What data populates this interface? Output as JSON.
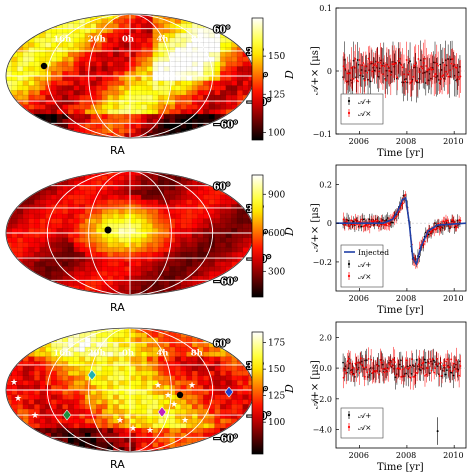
{
  "figure": {
    "rows": [
      {
        "sky": {
          "ra_label": "RA",
          "ra_ticks": [
            "8h",
            "4h",
            "0h",
            "20h",
            "16h"
          ],
          "dec_ticks": [
            "60°",
            "30°",
            "0°",
            "−30°",
            "−60°"
          ],
          "colorbar": {
            "label": "D",
            "ticks": [
              100,
              125,
              150
            ],
            "range": [
              95,
              175
            ]
          }
        },
        "timeseries": {
          "ylabel": "𝒜+× [μs]",
          "xlabel": "Time [yr]",
          "yticks": [
            "0.1",
            "0",
            "−0.1"
          ],
          "legend": [
            "𝒜+",
            "𝒜×"
          ]
        }
      },
      {
        "sky": {
          "ra_label": "RA",
          "ra_ticks": [],
          "dec_ticks": [
            "60°",
            "30°",
            "0°",
            "−30°",
            "−60°"
          ],
          "colorbar": {
            "label": "D",
            "ticks": [
              300,
              600,
              900
            ],
            "range": [
              100,
              1050
            ]
          }
        },
        "timeseries": {
          "ylabel": "𝒜+× [μs]",
          "xlabel": "Time [yr]",
          "yticks": [
            "0.2",
            "0",
            "−0.2"
          ],
          "legend": [
            "Injected",
            "𝒜+",
            "𝒜×"
          ]
        }
      },
      {
        "sky": {
          "ra_label": "RA",
          "ra_ticks": [
            "8h",
            "4h",
            "0h",
            "20h",
            "16h"
          ],
          "dec_ticks": [
            "60°",
            "30°",
            "0°",
            "−30°",
            "−60°"
          ],
          "colorbar": {
            "label": "D",
            "ticks": [
              100,
              125,
              150,
              175
            ],
            "range": [
              70,
              185
            ]
          }
        },
        "timeseries": {
          "ylabel": "𝒜+× [μs]",
          "xlabel": "Time [yr]",
          "yticks": [
            "2.0",
            "0.0",
            "−2.0",
            "−4.0"
          ],
          "legend": [
            "𝒜+",
            "𝒜×"
          ]
        }
      }
    ]
  },
  "chart_data": [
    {
      "type": "heatmap",
      "xlabel": "RA",
      "projection": "mollweide",
      "colorbar_label": "D",
      "colorbar_ticks": [
        100,
        125,
        150
      ],
      "marker": {
        "symbol": "circle",
        "color": "#000000",
        "ra_h": 5.5,
        "dec_deg": 42
      }
    },
    {
      "type": "scatter",
      "xlabel": "Time [yr]",
      "ylabel": "𝒜+× [μs]",
      "xlim": [
        2005,
        2010.5
      ],
      "ylim": [
        -0.1,
        0.1
      ],
      "xticks": [
        2006,
        2008,
        2010
      ],
      "yticks": [
        -0.1,
        0,
        0.1
      ],
      "series": [
        {
          "name": "𝒜+",
          "color": "#000000",
          "points": 90,
          "mean": 0.0,
          "err": 0.028
        },
        {
          "name": "𝒜×",
          "color": "#ff0000",
          "points": 90,
          "mean": 0.0,
          "err": 0.028
        }
      ]
    },
    {
      "type": "heatmap",
      "xlabel": "RA",
      "projection": "mollweide",
      "colorbar_label": "D",
      "colorbar_ticks": [
        300,
        600,
        900
      ],
      "marker": {
        "symbol": "circle",
        "color": "#000000",
        "ra_h": 0.3,
        "dec_deg": 5
      }
    },
    {
      "type": "line",
      "xlabel": "Time [yr]",
      "ylabel": "𝒜+× [μs]",
      "xlim": [
        2005,
        2010.5
      ],
      "ylim": [
        -0.35,
        0.3
      ],
      "xticks": [
        2006,
        2008,
        2010
      ],
      "yticks": [
        -0.2,
        0,
        0.2
      ],
      "series": [
        {
          "name": "Injected",
          "color": "#1f3fa6",
          "x": [
            2005.0,
            2007.0,
            2007.4,
            2007.6,
            2007.8,
            2007.95,
            2008.1,
            2008.25,
            2008.4,
            2008.6,
            2008.9,
            2009.3,
            2010.5
          ],
          "y": [
            0.0,
            0.0,
            0.02,
            0.06,
            0.12,
            0.13,
            0.0,
            -0.18,
            -0.21,
            -0.12,
            -0.04,
            -0.01,
            0.0
          ]
        },
        {
          "name": "𝒜+",
          "color": "#000000",
          "points": 90,
          "err": 0.03
        },
        {
          "name": "𝒜×",
          "color": "#ff0000",
          "points": 90,
          "err": 0.03
        }
      ]
    },
    {
      "type": "heatmap",
      "xlabel": "RA",
      "projection": "mollweide",
      "colorbar_label": "D",
      "colorbar_ticks": [
        100,
        125,
        150,
        175
      ],
      "markers": [
        {
          "symbol": "diamond",
          "color": "#20b0b0"
        },
        {
          "symbol": "diamond",
          "color": "#1f3fcc"
        },
        {
          "symbol": "diamond",
          "color": "#1f8f3f"
        },
        {
          "symbol": "diamond",
          "color": "#c020c0"
        },
        {
          "symbol": "circle",
          "color": "#000000"
        },
        {
          "symbol": "star",
          "color": "#ffffff"
        }
      ]
    },
    {
      "type": "scatter",
      "xlabel": "Time [yr]",
      "ylabel": "𝒜+× [μs]",
      "xlim": [
        2005,
        2010.5
      ],
      "ylim": [
        -5.2,
        3.0
      ],
      "xticks": [
        2006,
        2008,
        2010
      ],
      "yticks": [
        -4.0,
        -2.0,
        0.0,
        2.0
      ],
      "series": [
        {
          "name": "𝒜+",
          "color": "#000000",
          "points": 90,
          "err": 0.7
        },
        {
          "name": "𝒜×",
          "color": "#ff0000",
          "points": 90,
          "err": 0.7
        }
      ]
    }
  ]
}
